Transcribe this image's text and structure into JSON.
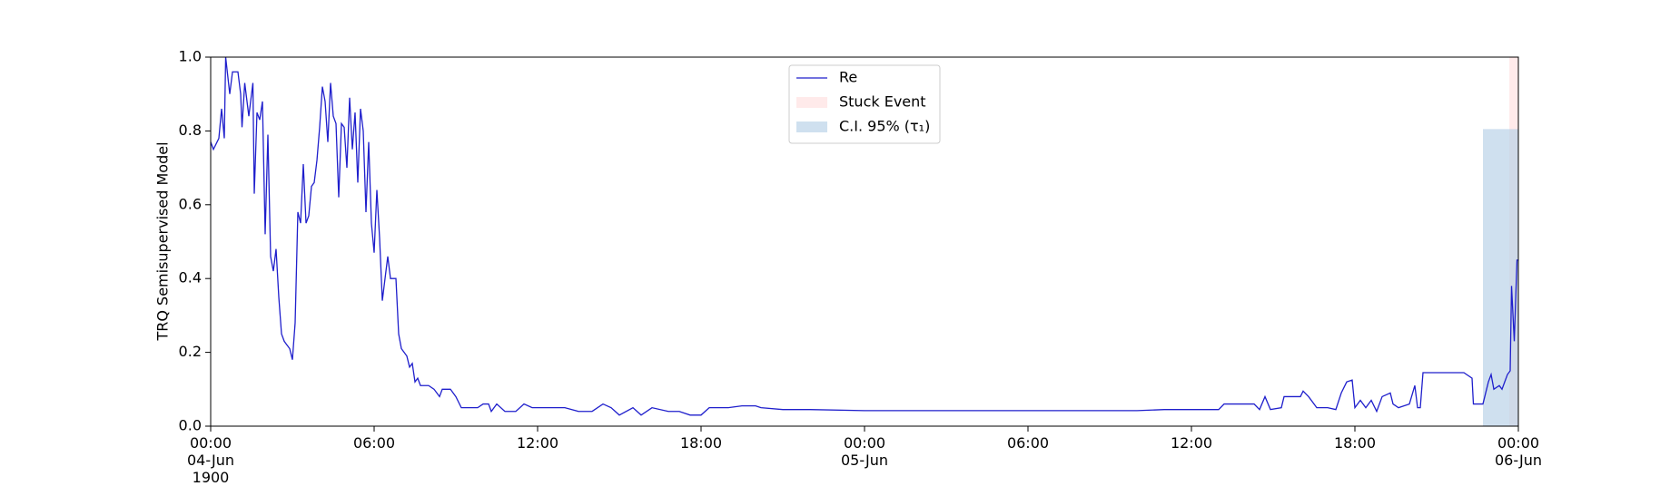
{
  "chart_data": {
    "type": "line",
    "ylabel": "TRQ Semisupervised Model",
    "xlim": [
      0,
      48
    ],
    "xticks": [
      {
        "value": 0,
        "label": "00:00\n04-Jun\n1900"
      },
      {
        "value": 6,
        "label": "06:00"
      },
      {
        "value": 12,
        "label": "12:00"
      },
      {
        "value": 18,
        "label": "18:00"
      },
      {
        "value": 24,
        "label": "00:00\n05-Jun"
      },
      {
        "value": 30,
        "label": "06:00"
      },
      {
        "value": 36,
        "label": "12:00"
      },
      {
        "value": 42,
        "label": "18:00"
      },
      {
        "value": 48,
        "label": "00:00\n06-Jun"
      }
    ],
    "ylim": [
      0,
      1
    ],
    "yticks": [
      {
        "value": 0,
        "label": "0.0"
      },
      0.2,
      0.4,
      0.6,
      0.8,
      {
        "value": 1,
        "label": "1.0"
      }
    ],
    "legend": "upper center",
    "series": [
      {
        "name": "Re",
        "color": "#1f1fcc",
        "x": [
          0,
          0.1,
          0.3,
          0.4,
          0.5,
          0.55,
          0.7,
          0.8,
          1.0,
          1.1,
          1.15,
          1.25,
          1.4,
          1.55,
          1.6,
          1.7,
          1.8,
          1.9,
          2.0,
          2.1,
          2.2,
          2.3,
          2.4,
          2.5,
          2.6,
          2.7,
          2.8,
          2.9,
          3.0,
          3.1,
          3.2,
          3.3,
          3.4,
          3.5,
          3.6,
          3.7,
          3.8,
          3.9,
          4.0,
          4.1,
          4.2,
          4.3,
          4.4,
          4.5,
          4.6,
          4.7,
          4.8,
          4.9,
          5.0,
          5.1,
          5.2,
          5.3,
          5.4,
          5.5,
          5.6,
          5.7,
          5.8,
          5.9,
          6.0,
          6.1,
          6.2,
          6.3,
          6.4,
          6.5,
          6.6,
          6.8,
          6.9,
          7.0,
          7.2,
          7.3,
          7.4,
          7.5,
          7.6,
          7.7,
          7.8,
          8.0,
          8.2,
          8.4,
          8.5,
          8.8,
          9.0,
          9.2,
          9.8,
          10.0,
          10.2,
          10.3,
          10.5,
          10.8,
          11.2,
          11.5,
          11.8,
          12.5,
          13.0,
          13.5,
          14.0,
          14.4,
          14.7,
          15.0,
          15.5,
          15.8,
          16.2,
          16.8,
          17.2,
          17.6,
          18.0,
          18.3,
          19.0,
          19.5,
          20.0,
          20.2,
          21.0,
          22.0,
          24.0,
          28.0,
          34.0,
          35.0,
          37.0,
          37.2,
          38.3,
          38.5,
          38.7,
          38.9,
          39.3,
          39.4,
          40.0,
          40.1,
          40.3,
          40.6,
          41.0,
          41.3,
          41.5,
          41.7,
          41.9,
          42.0,
          42.2,
          42.4,
          42.6,
          42.8,
          43.0,
          43.3,
          43.4,
          43.6,
          44.0,
          44.2,
          44.3,
          44.4,
          44.5,
          46.0,
          46.3,
          46.35,
          46.7,
          46.9,
          47.0,
          47.1,
          47.3,
          47.4,
          47.5,
          47.6,
          47.7,
          47.75,
          47.85,
          47.95,
          48.0
        ],
        "values": [
          0.77,
          0.75,
          0.78,
          0.86,
          0.78,
          1.0,
          0.9,
          0.96,
          0.96,
          0.9,
          0.81,
          0.93,
          0.84,
          0.93,
          0.63,
          0.85,
          0.83,
          0.88,
          0.52,
          0.79,
          0.46,
          0.42,
          0.48,
          0.35,
          0.25,
          0.23,
          0.22,
          0.21,
          0.18,
          0.28,
          0.58,
          0.55,
          0.71,
          0.55,
          0.57,
          0.65,
          0.66,
          0.72,
          0.81,
          0.92,
          0.88,
          0.77,
          0.93,
          0.84,
          0.82,
          0.62,
          0.82,
          0.81,
          0.7,
          0.89,
          0.75,
          0.85,
          0.66,
          0.86,
          0.8,
          0.58,
          0.77,
          0.55,
          0.47,
          0.64,
          0.51,
          0.34,
          0.4,
          0.46,
          0.4,
          0.4,
          0.25,
          0.21,
          0.19,
          0.16,
          0.17,
          0.12,
          0.13,
          0.11,
          0.11,
          0.11,
          0.1,
          0.08,
          0.1,
          0.1,
          0.08,
          0.05,
          0.05,
          0.06,
          0.06,
          0.04,
          0.06,
          0.04,
          0.04,
          0.06,
          0.05,
          0.05,
          0.05,
          0.04,
          0.04,
          0.06,
          0.05,
          0.03,
          0.05,
          0.03,
          0.05,
          0.04,
          0.04,
          0.03,
          0.03,
          0.05,
          0.05,
          0.055,
          0.055,
          0.05,
          0.045,
          0.045,
          0.042,
          0.042,
          0.042,
          0.045,
          0.045,
          0.06,
          0.06,
          0.045,
          0.08,
          0.045,
          0.05,
          0.08,
          0.08,
          0.095,
          0.08,
          0.05,
          0.05,
          0.045,
          0.09,
          0.12,
          0.125,
          0.05,
          0.07,
          0.05,
          0.07,
          0.04,
          0.08,
          0.09,
          0.06,
          0.05,
          0.06,
          0.11,
          0.05,
          0.05,
          0.145,
          0.145,
          0.13,
          0.06,
          0.06,
          0.12,
          0.14,
          0.1,
          0.11,
          0.1,
          0.12,
          0.14,
          0.15,
          0.38,
          0.23,
          0.45,
          0.45
        ]
      }
    ],
    "regions": [
      {
        "name": "Stuck Event",
        "color": "#ffdede",
        "x": [
          47.67,
          48
        ],
        "y": [
          0,
          1
        ]
      },
      {
        "name": "C.I. 95% (τ₁)",
        "color": "#b5d0e6",
        "x": [
          46.7,
          48
        ],
        "y": [
          0,
          0.805
        ]
      }
    ]
  }
}
